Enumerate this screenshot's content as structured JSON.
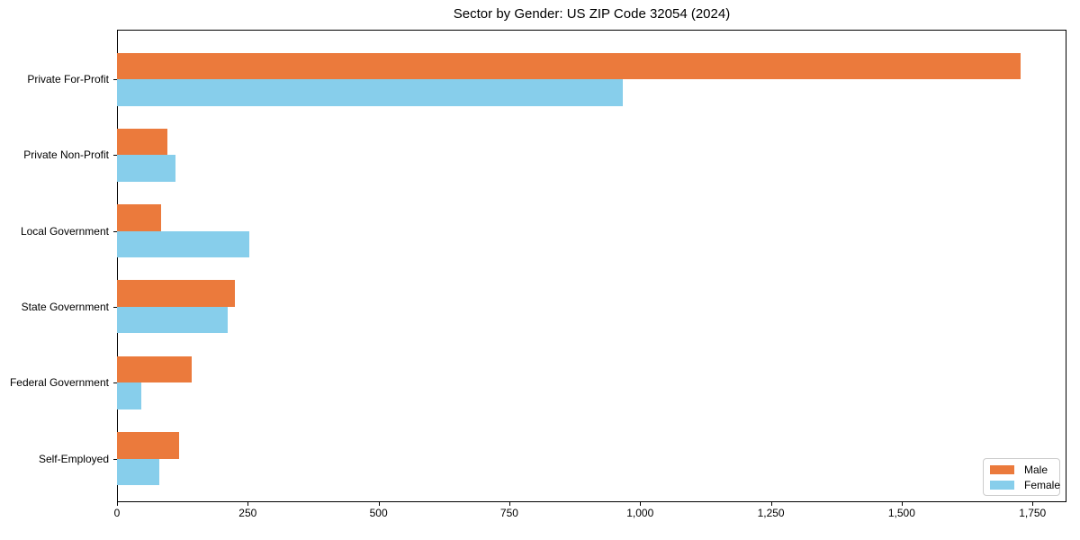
{
  "chart_data": {
    "type": "bar",
    "orientation": "horizontal",
    "title": "Sector by Gender: US ZIP Code 32054 (2024)",
    "categories": [
      "Private For-Profit",
      "Private Non-Profit",
      "Local Government",
      "State Government",
      "Federal Government",
      "Self-Employed"
    ],
    "series": [
      {
        "name": "Male",
        "color": "#eb7a3c",
        "values": [
          1727,
          96,
          84,
          225,
          143,
          119
        ]
      },
      {
        "name": "Female",
        "color": "#87ceeb",
        "values": [
          966,
          112,
          253,
          211,
          46,
          81
        ]
      }
    ],
    "xlabel": "",
    "ylabel": "",
    "xlim": [
      0,
      1815
    ],
    "xticks": {
      "values": [
        0,
        250,
        500,
        750,
        1000,
        1250,
        1500,
        1750
      ],
      "labels": [
        "0",
        "250",
        "500",
        "750",
        "1,000",
        "1,250",
        "1,500",
        "1,750"
      ]
    },
    "grid": false,
    "legend": {
      "position": "lower right",
      "entries": [
        "Male",
        "Female"
      ]
    },
    "colors": {
      "axis": "#000000",
      "background": "#ffffff",
      "legend_border": "#cccccc"
    }
  }
}
